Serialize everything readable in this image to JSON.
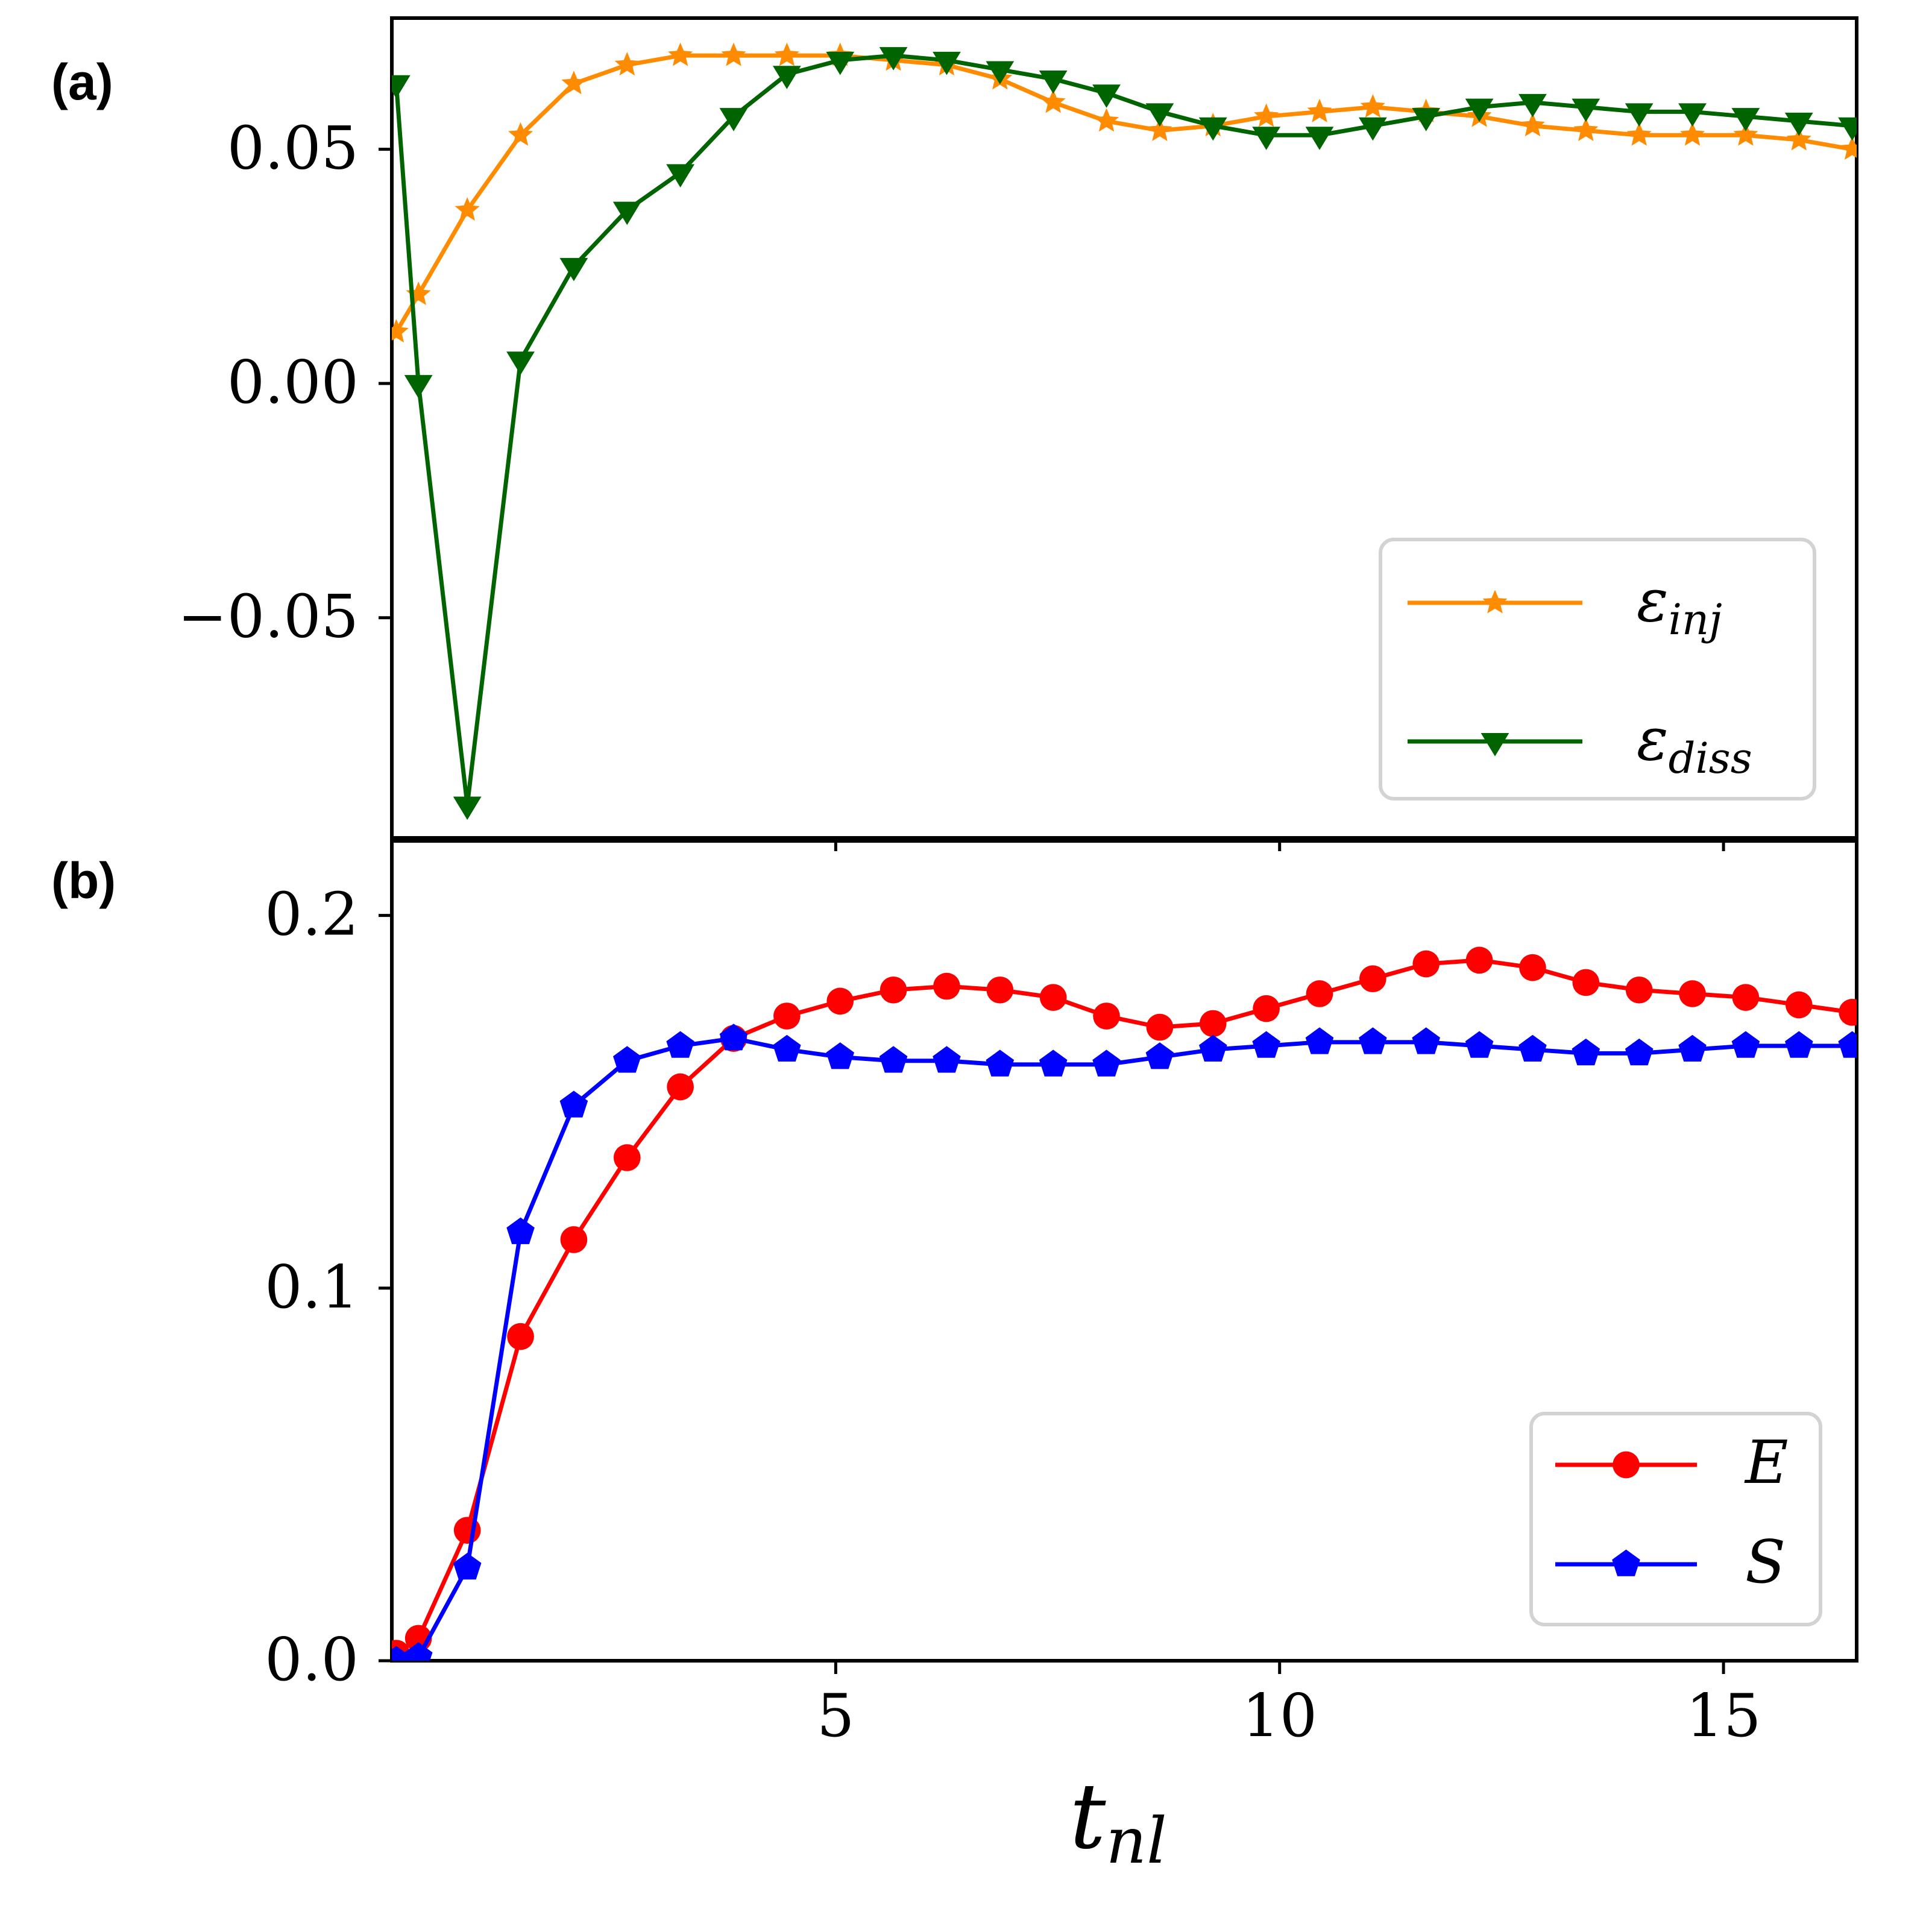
{
  "chart_data": [
    {
      "type": "line",
      "panel_label": "(a)",
      "xlim": [
        0,
        16.5
      ],
      "ylim": [
        -0.097,
        0.078
      ],
      "yticks": [
        {
          "value": 0.05,
          "label": "0.05"
        },
        {
          "value": 0.0,
          "label": "0.00"
        },
        {
          "value": -0.05,
          "label": "−0.05"
        }
      ],
      "xticks": [
        5,
        10,
        15
      ],
      "legend_position": "lower right",
      "series": [
        {
          "name": "ε",
          "subscript": "inj",
          "color": "#ff8c00",
          "marker": "star",
          "x": [
            0.05,
            0.3,
            0.85,
            1.45,
            2.05,
            2.65,
            3.25,
            3.85,
            4.45,
            5.05,
            5.65,
            6.25,
            6.85,
            7.45,
            8.05,
            8.65,
            9.25,
            9.85,
            10.45,
            11.05,
            11.65,
            12.25,
            12.85,
            13.45,
            14.05,
            14.65,
            15.25,
            15.85,
            16.45
          ],
          "values": [
            0.011,
            0.019,
            0.037,
            0.053,
            0.064,
            0.068,
            0.07,
            0.07,
            0.07,
            0.07,
            0.069,
            0.068,
            0.065,
            0.06,
            0.056,
            0.054,
            0.055,
            0.057,
            0.058,
            0.059,
            0.058,
            0.057,
            0.055,
            0.054,
            0.053,
            0.053,
            0.053,
            0.052,
            0.05
          ]
        },
        {
          "name": "ε",
          "subscript": "diss",
          "color": "#006400",
          "marker": "triangle-down",
          "x": [
            0.05,
            0.3,
            0.85,
            1.45,
            2.05,
            2.65,
            3.25,
            3.85,
            4.45,
            5.05,
            5.65,
            6.25,
            6.85,
            7.45,
            8.05,
            8.65,
            9.25,
            9.85,
            10.45,
            11.05,
            11.65,
            12.25,
            12.85,
            13.45,
            14.05,
            14.65,
            15.25,
            15.85,
            16.45
          ],
          "values": [
            0.064,
            0.0,
            -0.09,
            0.005,
            0.025,
            0.037,
            0.045,
            0.057,
            0.066,
            0.069,
            0.07,
            0.069,
            0.067,
            0.065,
            0.062,
            0.058,
            0.055,
            0.053,
            0.053,
            0.055,
            0.057,
            0.059,
            0.06,
            0.059,
            0.058,
            0.058,
            0.057,
            0.056,
            0.055
          ]
        }
      ]
    },
    {
      "type": "line",
      "panel_label": "(b)",
      "xlim": [
        0,
        16.5
      ],
      "xlabel": "t",
      "xlabel_subscript": "nl",
      "ylim": [
        0.0,
        0.22
      ],
      "yticks": [
        {
          "value": 0.2,
          "label": "0.2"
        },
        {
          "value": 0.1,
          "label": "0.1"
        },
        {
          "value": 0.0,
          "label": "0.0"
        }
      ],
      "xticks": [
        5,
        10,
        15
      ],
      "legend_position": "lower right",
      "series": [
        {
          "name": "E",
          "color": "#ff0000",
          "marker": "circle",
          "x": [
            0.05,
            0.3,
            0.85,
            1.45,
            2.05,
            2.65,
            3.25,
            3.85,
            4.45,
            5.05,
            5.65,
            6.25,
            6.85,
            7.45,
            8.05,
            8.65,
            9.25,
            9.85,
            10.45,
            11.05,
            11.65,
            12.25,
            12.85,
            13.45,
            14.05,
            14.65,
            15.25,
            15.85,
            16.45
          ],
          "values": [
            0.002,
            0.006,
            0.035,
            0.087,
            0.113,
            0.135,
            0.154,
            0.167,
            0.173,
            0.177,
            0.18,
            0.181,
            0.18,
            0.178,
            0.173,
            0.17,
            0.171,
            0.175,
            0.179,
            0.183,
            0.187,
            0.188,
            0.186,
            0.182,
            0.18,
            0.179,
            0.178,
            0.176,
            0.174
          ]
        },
        {
          "name": "S",
          "color": "#0000ff",
          "marker": "pentagon",
          "x": [
            0.05,
            0.3,
            0.85,
            1.45,
            2.05,
            2.65,
            3.25,
            3.85,
            4.45,
            5.05,
            5.65,
            6.25,
            6.85,
            7.45,
            8.05,
            8.65,
            9.25,
            9.85,
            10.45,
            11.05,
            11.65,
            12.25,
            12.85,
            13.45,
            14.05,
            14.65,
            15.25,
            15.85,
            16.45
          ],
          "values": [
            0.0,
            0.001,
            0.025,
            0.115,
            0.149,
            0.161,
            0.165,
            0.167,
            0.164,
            0.162,
            0.161,
            0.161,
            0.16,
            0.16,
            0.16,
            0.162,
            0.164,
            0.165,
            0.166,
            0.166,
            0.166,
            0.165,
            0.164,
            0.163,
            0.163,
            0.164,
            0.165,
            0.165,
            0.165
          ]
        }
      ]
    }
  ]
}
